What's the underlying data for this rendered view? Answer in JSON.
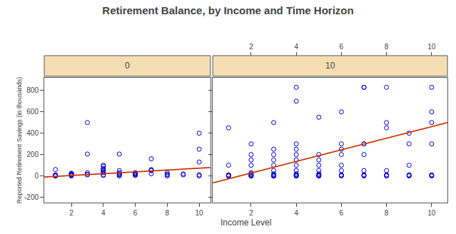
{
  "chart_data": [
    {
      "type": "scatter",
      "title": "Retirement Balance, by Income and Time Horizon",
      "subtitle": "0",
      "xlabel": "Income Level",
      "ylabel": "Reported Retirement Savings (in thousands)",
      "xlim": [
        0.3,
        10.7
      ],
      "xticks": [
        2,
        4,
        6,
        8,
        10
      ],
      "ylim": [
        -250,
        920
      ],
      "yticks": [
        -200,
        0,
        200,
        400,
        600,
        800
      ],
      "grid": false,
      "series": [
        {
          "type": "scatter",
          "marker": "circle-open",
          "color": "#0000cd",
          "x": [
            1,
            1,
            1,
            1,
            1,
            2,
            2,
            2,
            2,
            2,
            2,
            3,
            3,
            3,
            3,
            3,
            4,
            4,
            4,
            4,
            4,
            4,
            4,
            4,
            4,
            5,
            5,
            5,
            5,
            5,
            5,
            5,
            6,
            6,
            6,
            6,
            6,
            6,
            7,
            7,
            7,
            7,
            7,
            8,
            8,
            8,
            8,
            9,
            9,
            10,
            10,
            10,
            10,
            10
          ],
          "values": [
            60,
            5,
            10,
            0,
            0,
            15,
            20,
            10,
            5,
            0,
            25,
            205,
            10,
            15,
            500,
            30,
            5,
            60,
            70,
            90,
            100,
            30,
            40,
            50,
            10,
            205,
            30,
            50,
            20,
            10,
            0,
            15,
            30,
            25,
            20,
            10,
            5,
            15,
            60,
            50,
            160,
            20,
            50,
            15,
            30,
            10,
            0,
            20,
            10,
            0,
            250,
            400,
            130,
            10
          ]
        },
        {
          "type": "line",
          "color": "#cc3300",
          "x": [
            0.3,
            10.7
          ],
          "values": [
            -10,
            78
          ]
        }
      ]
    },
    {
      "type": "scatter",
      "subtitle": "10",
      "xlim": [
        0.3,
        10.7
      ],
      "xticks": [
        2,
        4,
        6,
        8,
        10
      ],
      "ylim": [
        -250,
        920
      ],
      "yticks": [
        -200,
        0,
        200,
        400,
        600,
        800
      ],
      "grid": false,
      "tick_labels": "x",
      "series": [
        {
          "type": "scatter",
          "marker": "circle-open",
          "color": "#0000cd",
          "x": [
            1,
            1,
            1,
            1,
            1,
            1,
            2,
            2,
            2,
            2,
            2,
            2,
            2,
            2,
            2,
            2,
            2,
            3,
            3,
            3,
            3,
            3,
            3,
            3,
            3,
            3,
            3,
            3,
            3,
            4,
            4,
            4,
            4,
            4,
            4,
            4,
            4,
            4,
            4,
            4,
            4,
            4,
            5,
            5,
            5,
            5,
            5,
            5,
            5,
            5,
            5,
            5,
            6,
            6,
            6,
            6,
            6,
            6,
            6,
            6,
            6,
            7,
            7,
            7,
            7,
            7,
            7,
            7,
            7,
            7,
            8,
            8,
            8,
            8,
            8,
            8,
            8,
            9,
            9,
            9,
            9,
            9,
            9,
            10,
            10,
            10,
            10,
            10,
            10,
            10
          ],
          "values": [
            0,
            0,
            5,
            10,
            450,
            100,
            0,
            0,
            0,
            5,
            10,
            20,
            30,
            100,
            150,
            300,
            200,
            0,
            0,
            0,
            5,
            10,
            20,
            50,
            100,
            150,
            200,
            250,
            500,
            0,
            0,
            5,
            10,
            20,
            50,
            100,
            150,
            200,
            250,
            300,
            700,
            830,
            0,
            0,
            5,
            10,
            20,
            50,
            100,
            150,
            200,
            550,
            0,
            5,
            10,
            50,
            100,
            200,
            250,
            300,
            600,
            0,
            5,
            10,
            50,
            200,
            300,
            830,
            830,
            300,
            0,
            5,
            10,
            50,
            450,
            500,
            830,
            0,
            5,
            10,
            100,
            300,
            400,
            0,
            5,
            10,
            300,
            830,
            500,
            600
          ]
        },
        {
          "type": "line",
          "color": "#cc3300",
          "x": [
            0.3,
            10.7
          ],
          "values": [
            -65,
            500
          ]
        }
      ]
    }
  ]
}
